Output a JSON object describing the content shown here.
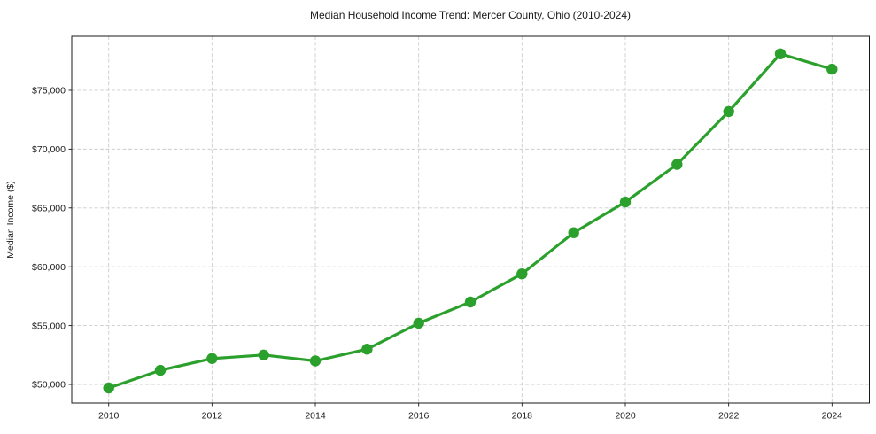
{
  "chart_data": {
    "type": "line",
    "title": "Median Household Income Trend: Mercer County, Ohio (2010-2024)",
    "xlabel": "",
    "ylabel": "Median Income ($)",
    "series": [
      {
        "name": "Median Household Income",
        "x": [
          2010,
          2011,
          2012,
          2013,
          2014,
          2015,
          2016,
          2017,
          2018,
          2019,
          2020,
          2021,
          2022,
          2023,
          2024
        ],
        "values": [
          49700,
          51200,
          52200,
          52500,
          52000,
          53000,
          55200,
          57000,
          59400,
          62900,
          65500,
          68700,
          73200,
          78100,
          76800
        ]
      }
    ],
    "x_ticks": [
      2010,
      2012,
      2014,
      2016,
      2018,
      2020,
      2022,
      2024
    ],
    "x_tick_labels": [
      "2010",
      "2012",
      "2014",
      "2016",
      "2018",
      "2020",
      "2022",
      "2024"
    ],
    "y_ticks": [
      50000,
      55000,
      60000,
      65000,
      70000,
      75000
    ],
    "y_tick_labels": [
      "$50,000",
      "$55,000",
      "$60,000",
      "$65,000",
      "$70,000",
      "$75,000"
    ],
    "xlim": [
      2009.285,
      2024.723
    ],
    "ylim": [
      48420,
      79590
    ],
    "grid": true,
    "grid_style": "dashed",
    "legend": "none",
    "colors": {
      "line": "#2ca02c",
      "marker": "#2ca02c",
      "grid": "#cccccc",
      "spine": "#1a1a1a",
      "background": "#ffffff"
    }
  }
}
